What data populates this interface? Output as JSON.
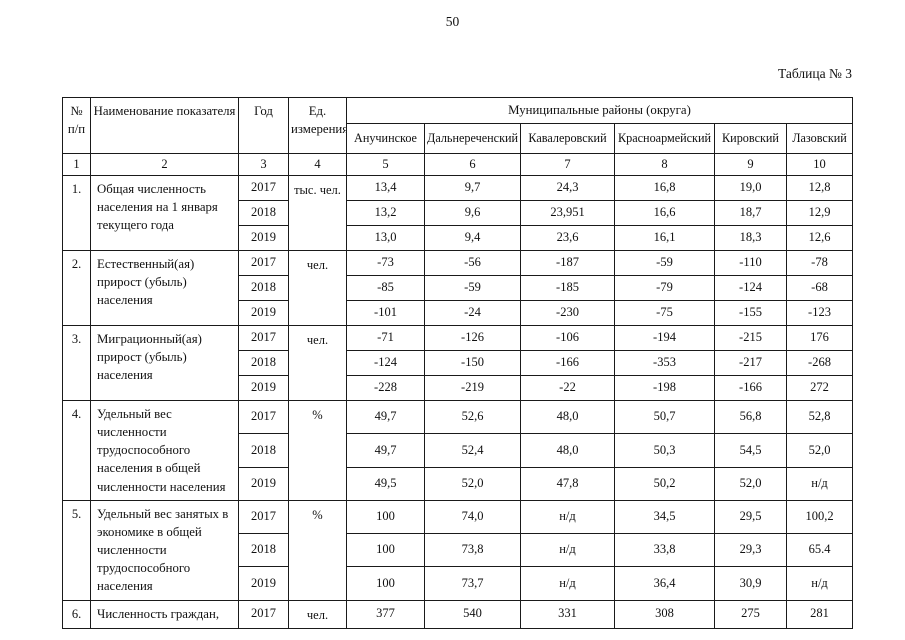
{
  "page": {
    "number": "50",
    "caption": "Таблица № 3"
  },
  "table": {
    "header": {
      "num": "№ п/п",
      "indicator": "Наименование показателя",
      "year": "Год",
      "unit": "Ед. измерения",
      "group": "Муниципальные районы (округа)",
      "districts": [
        "Анучинское",
        "Дальнереченский",
        "Кавалеровский",
        "Красноармейский",
        "Кировский",
        "Лазовский"
      ],
      "col_numbers": [
        "1",
        "2",
        "3",
        "4",
        "5",
        "6",
        "7",
        "8",
        "9",
        "10"
      ]
    },
    "rows": [
      {
        "num": "1.",
        "name": "Общая численность населения на 1 января текущего года",
        "unit": "тыс. чел.",
        "years": [
          {
            "year": "2017",
            "values": [
              "13,4",
              "9,7",
              "24,3",
              "16,8",
              "19,0",
              "12,8"
            ]
          },
          {
            "year": "2018",
            "values": [
              "13,2",
              "9,6",
              "23,951",
              "16,6",
              "18,7",
              "12,9"
            ]
          },
          {
            "year": "2019",
            "values": [
              "13,0",
              "9,4",
              "23,6",
              "16,1",
              "18,3",
              "12,6"
            ]
          }
        ]
      },
      {
        "num": "2.",
        "name": "Естественный(ая) прирост (убыль) населения",
        "unit": "чел.",
        "years": [
          {
            "year": "2017",
            "values": [
              "-73",
              "-56",
              "-187",
              "-59",
              "-110",
              "-78"
            ]
          },
          {
            "year": "2018",
            "values": [
              "-85",
              "-59",
              "-185",
              "-79",
              "-124",
              "-68"
            ]
          },
          {
            "year": "2019",
            "values": [
              "-101",
              "-24",
              "-230",
              "-75",
              "-155",
              "-123"
            ]
          }
        ]
      },
      {
        "num": "3.",
        "name": "Миграционный(ая) прирост (убыль) населения",
        "unit": "чел.",
        "years": [
          {
            "year": "2017",
            "values": [
              "-71",
              "-126",
              "-106",
              "-194",
              "-215",
              "176"
            ]
          },
          {
            "year": "2018",
            "values": [
              "-124",
              "-150",
              "-166",
              "-353",
              "-217",
              "-268"
            ]
          },
          {
            "year": "2019",
            "values": [
              "-228",
              "-219",
              "-22",
              "-198",
              "-166",
              "272"
            ]
          }
        ]
      },
      {
        "num": "4.",
        "name": "Удельный вес численности трудоспособного населения в общей численности населения",
        "unit": "%",
        "years": [
          {
            "year": "2017",
            "values": [
              "49,7",
              "52,6",
              "48,0",
              "50,7",
              "56,8",
              "52,8"
            ]
          },
          {
            "year": "2018",
            "values": [
              "49,7",
              "52,4",
              "48,0",
              "50,3",
              "54,5",
              "52,0"
            ]
          },
          {
            "year": "2019",
            "values": [
              "49,5",
              "52,0",
              "47,8",
              "50,2",
              "52,0",
              "н/д"
            ]
          }
        ]
      },
      {
        "num": "5.",
        "name": "Удельный вес занятых в экономике в общей численности трудоспособного населения",
        "unit": "%",
        "years": [
          {
            "year": "2017",
            "values": [
              "100",
              "74,0",
              "н/д",
              "34,5",
              "29,5",
              "100,2"
            ]
          },
          {
            "year": "2018",
            "values": [
              "100",
              "73,8",
              "н/д",
              "33,8",
              "29,3",
              "65.4"
            ]
          },
          {
            "year": "2019",
            "values": [
              "100",
              "73,7",
              "н/д",
              "36,4",
              "30,9",
              "н/д"
            ]
          }
        ]
      },
      {
        "num": "6.",
        "name": "Численность граждан,",
        "unit": "чел.",
        "years": [
          {
            "year": "2017",
            "values": [
              "377",
              "540",
              "331",
              "308",
              "275",
              "281"
            ]
          }
        ]
      }
    ]
  }
}
